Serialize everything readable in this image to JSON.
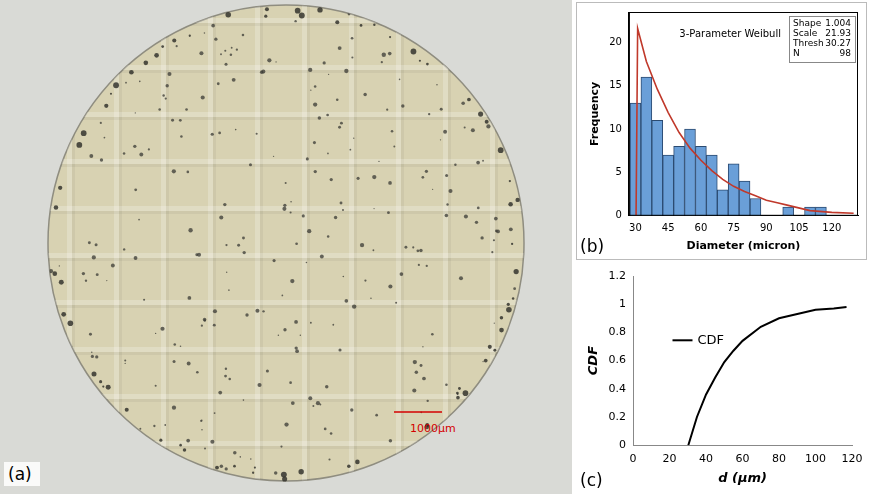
{
  "image": {
    "panel": "(a)",
    "scale_bar": "1000μm"
  },
  "chart_data": [
    {
      "type": "histogram",
      "panel": "(b)",
      "title": "3-Parameter Weibull",
      "x_label": "Diameter (micron)",
      "y_label": "Frequency",
      "bins": [
        27.5,
        32.5,
        37.5,
        42.5,
        47.5,
        52.5,
        57.5,
        62.5,
        67.5,
        72.5,
        77.5,
        82.5,
        87.5,
        92.5,
        97.5,
        102.5,
        107.5,
        112.5,
        117.5
      ],
      "counts": [
        13,
        16,
        11,
        7,
        8,
        10,
        8,
        7,
        3,
        6,
        4,
        2,
        0,
        0,
        1,
        0,
        1,
        1
      ],
      "color": "#6a9fd8",
      "fit": {
        "type": "line",
        "color": "#c0392b",
        "x": [
          30.27,
          31,
          35,
          40,
          45,
          50,
          55,
          60,
          65,
          70,
          75,
          80,
          85,
          90,
          95,
          100,
          110,
          120,
          130
        ],
        "values": [
          0,
          21.6,
          17.8,
          14.6,
          11.9,
          9.6,
          7.8,
          6.4,
          5.2,
          4.2,
          3.4,
          2.8,
          2.3,
          1.8,
          1.5,
          1.2,
          0.6,
          0.4,
          0.3
        ]
      },
      "stats": [
        {
          "label": "Shape",
          "value": 1.004
        },
        {
          "label": "Scale",
          "value": 21.93
        },
        {
          "label": "Thresh",
          "value": 30.27
        },
        {
          "label": "N",
          "value": 98
        }
      ],
      "xlim": [
        27,
        132
      ],
      "xticks": [
        30,
        45,
        60,
        75,
        90,
        105,
        120
      ],
      "ylim": [
        0,
        23.5
      ],
      "yticks": [
        0,
        5,
        10,
        15,
        20
      ],
      "grid": false
    },
    {
      "type": "line",
      "panel": "(c)",
      "x_label": "d (μm)",
      "y_label": "CDF",
      "series": [
        {
          "name": "CDF",
          "color": "#000000",
          "x": [
            30.27,
            35,
            40,
            45,
            50,
            55,
            60,
            70,
            80,
            90,
            100,
            110,
            117
          ],
          "values": [
            0,
            0.2,
            0.36,
            0.48,
            0.59,
            0.67,
            0.74,
            0.84,
            0.9,
            0.93,
            0.96,
            0.97,
            0.98
          ]
        }
      ],
      "xlim": [
        0,
        120
      ],
      "xticks": [
        0,
        20,
        40,
        60,
        80,
        100,
        120
      ],
      "ylim": [
        0,
        1.2
      ],
      "yticks": [
        0,
        0.2,
        0.4,
        0.6,
        0.8,
        1,
        1.2
      ],
      "legend": "left",
      "grid": false
    }
  ]
}
